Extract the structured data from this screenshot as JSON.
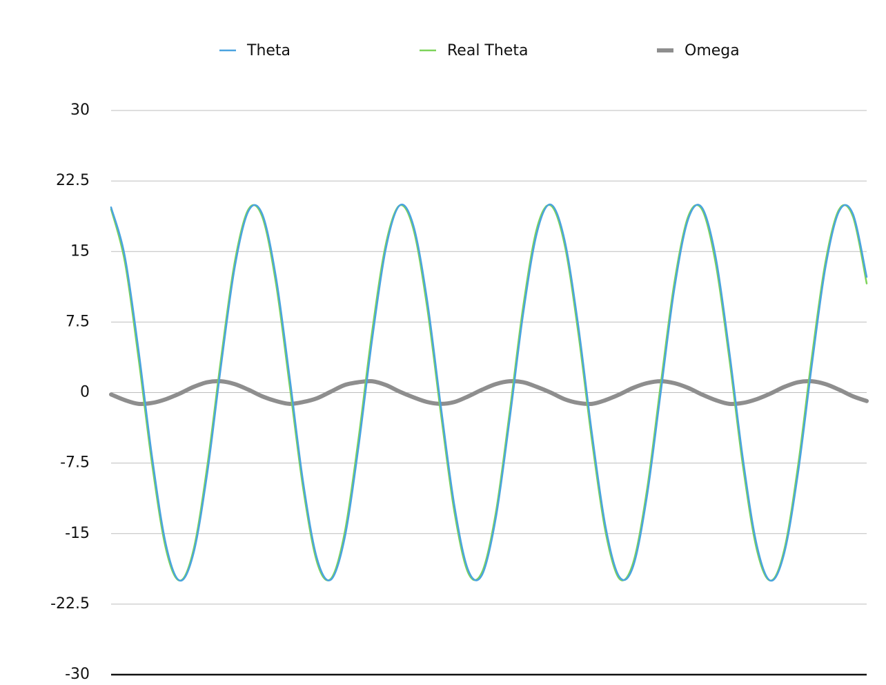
{
  "chart_data": {
    "type": "line",
    "categories": [
      null,
      null,
      null,
      null,
      null,
      null,
      null,
      null,
      null,
      null,
      null,
      null,
      null,
      null,
      null,
      null,
      null,
      null,
      null,
      null,
      null,
      null,
      null,
      null,
      null,
      null,
      null,
      null,
      null,
      null,
      null,
      null,
      null,
      null,
      null,
      null,
      null,
      null,
      null,
      null,
      null,
      null,
      null,
      null,
      null,
      null,
      null,
      null,
      null,
      null,
      null,
      null,
      null,
      null,
      null,
      null
    ],
    "series": [
      {
        "name": "Theta",
        "color": "#4aa3df",
        "values": [
          19.7,
          14.5,
          4.5,
          -7.0,
          -16.2,
          -20.0,
          -17.1,
          -8.6,
          2.8,
          13.3,
          19.3,
          19.0,
          12.3,
          1.6,
          -9.7,
          -17.7,
          -19.9,
          -15.5,
          -5.9,
          5.6,
          15.3,
          19.9,
          17.8,
          9.9,
          -1.4,
          -12.1,
          -18.9,
          -19.4,
          -13.4,
          -3.0,
          8.4,
          17.0,
          20.0,
          16.3,
          7.2,
          -4.3,
          -14.3,
          -19.6,
          -18.5,
          -11.1,
          -0.1,
          11.0,
          18.4,
          19.7,
          14.5,
          4.4,
          -7.1,
          -16.2,
          -20.0,
          -17.1,
          -8.6,
          2.8,
          13.3,
          19.3,
          19.0,
          12.3
        ]
      },
      {
        "name": "Real Theta",
        "color": "#7dd35a",
        "values": [
          19.5,
          13.9,
          3.6,
          -7.8,
          -16.7,
          -20.0,
          -16.7,
          -7.8,
          3.6,
          13.9,
          19.5,
          18.7,
          11.6,
          0.7,
          -10.4,
          -18.1,
          -19.8,
          -14.9,
          -5.0,
          6.5,
          15.8,
          19.9,
          17.4,
          9.1,
          -2.2,
          -12.8,
          -19.2,
          -19.1,
          -12.8,
          -2.2,
          9.2,
          17.5,
          19.9,
          15.8,
          6.4,
          -5.1,
          -14.9,
          -19.8,
          -18.1,
          -10.4,
          0.8,
          11.7,
          18.7,
          19.5,
          13.8,
          3.6,
          -7.9,
          -16.7,
          -20.0,
          -16.7,
          -7.8,
          3.7,
          13.9,
          19.5,
          18.7,
          11.6
        ]
      },
      {
        "name": "Omega",
        "color": "#8e8e8e",
        "values": [
          -0.2,
          -0.8,
          -1.2,
          -1.1,
          -0.7,
          -0.1,
          0.6,
          1.1,
          1.2,
          0.9,
          0.3,
          -0.4,
          -0.9,
          -1.2,
          -1.0,
          -0.6,
          0.1,
          0.8,
          1.1,
          1.2,
          0.8,
          0.1,
          -0.5,
          -1.0,
          -1.2,
          -1.0,
          -0.4,
          0.3,
          0.9,
          1.2,
          1.1,
          0.6,
          0.0,
          -0.7,
          -1.1,
          -1.2,
          -0.8,
          -0.2,
          0.5,
          1.0,
          1.2,
          1.0,
          0.5,
          -0.2,
          -0.8,
          -1.2,
          -1.1,
          -0.7,
          -0.1,
          0.6,
          1.1,
          1.2,
          0.9,
          0.3,
          -0.4,
          -0.9
        ]
      }
    ],
    "ylim": [
      -30,
      30
    ],
    "yticks": [
      -30,
      -22.5,
      -15,
      -7.5,
      0,
      7.5,
      15,
      22.5,
      30
    ],
    "grid": true,
    "legend": "top"
  }
}
